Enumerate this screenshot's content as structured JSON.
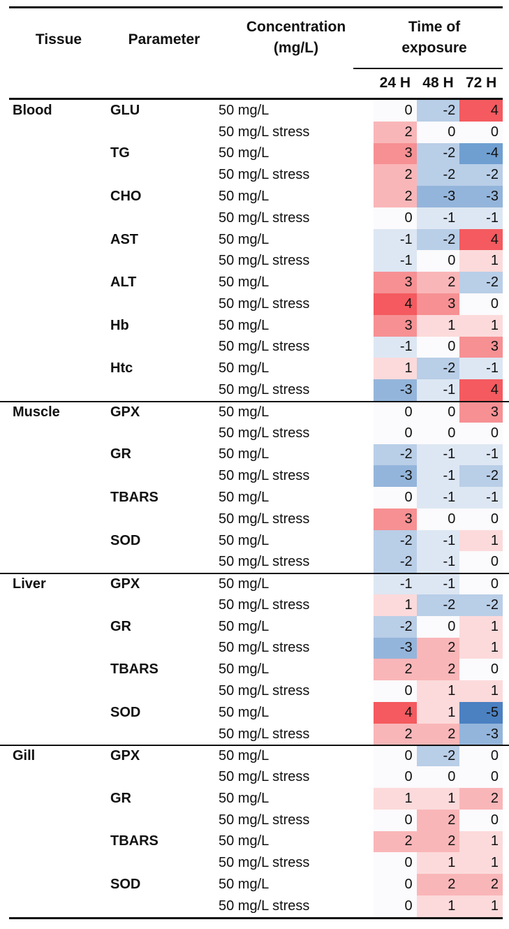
{
  "table": {
    "headers": {
      "tissue": "Tissue",
      "parameter": "Parameter",
      "concentration": [
        "Concentration",
        "(mg/L)"
      ],
      "time": [
        "Time of",
        "exposure"
      ],
      "time_cols": [
        "24 H",
        "48 H",
        "72 H"
      ]
    }
  },
  "chart_data": {
    "type": "heatmap",
    "title": "",
    "columns": [
      "24 H",
      "48 H",
      "72 H"
    ],
    "row_labels": [
      "Tissue",
      "Parameter",
      "Concentration (mg/L)"
    ],
    "value_range": [
      -5,
      4
    ],
    "legend": "diverging blue (negative) to red (positive)",
    "value_colors": {
      "-5": "#4b80c1",
      "-4": "#6f9fd1",
      "-3": "#94b5db",
      "-2": "#b9cee7",
      "-1": "#dde7f3",
      "0": "#fbfafc",
      "1": "#fcdadb",
      "2": "#f9b6b8",
      "3": "#f69093",
      "4": "#f45a5f"
    },
    "rows": [
      {
        "tissue": "Blood",
        "parameter": "GLU",
        "show_tissue": true,
        "show_parameter": true,
        "concentration": "50 mg/L",
        "values": [
          0,
          -2,
          4
        ]
      },
      {
        "tissue": "Blood",
        "parameter": "GLU",
        "show_tissue": false,
        "show_parameter": false,
        "concentration": "50 mg/L stress",
        "values": [
          2,
          0,
          0
        ]
      },
      {
        "tissue": "Blood",
        "parameter": "TG",
        "show_tissue": false,
        "show_parameter": true,
        "concentration": "50 mg/L",
        "values": [
          3,
          -2,
          -4
        ]
      },
      {
        "tissue": "Blood",
        "parameter": "TG",
        "show_tissue": false,
        "show_parameter": false,
        "concentration": "50 mg/L stress",
        "values": [
          2,
          -2,
          -2
        ]
      },
      {
        "tissue": "Blood",
        "parameter": "CHO",
        "show_tissue": false,
        "show_parameter": true,
        "concentration": "50 mg/L",
        "values": [
          2,
          -3,
          -3
        ]
      },
      {
        "tissue": "Blood",
        "parameter": "CHO",
        "show_tissue": false,
        "show_parameter": false,
        "concentration": "50 mg/L stress",
        "values": [
          0,
          -1,
          -1
        ]
      },
      {
        "tissue": "Blood",
        "parameter": "AST",
        "show_tissue": false,
        "show_parameter": true,
        "concentration": "50 mg/L",
        "values": [
          -1,
          -2,
          4
        ]
      },
      {
        "tissue": "Blood",
        "parameter": "AST",
        "show_tissue": false,
        "show_parameter": false,
        "concentration": "50 mg/L stress",
        "values": [
          -1,
          0,
          1
        ]
      },
      {
        "tissue": "Blood",
        "parameter": "ALT",
        "show_tissue": false,
        "show_parameter": true,
        "concentration": "50 mg/L",
        "values": [
          3,
          2,
          -2
        ]
      },
      {
        "tissue": "Blood",
        "parameter": "ALT",
        "show_tissue": false,
        "show_parameter": false,
        "concentration": "50 mg/L stress",
        "values": [
          4,
          3,
          0
        ]
      },
      {
        "tissue": "Blood",
        "parameter": "Hb",
        "show_tissue": false,
        "show_parameter": true,
        "concentration": "50 mg/L",
        "values": [
          3,
          1,
          1
        ]
      },
      {
        "tissue": "Blood",
        "parameter": "Hb",
        "show_tissue": false,
        "show_parameter": false,
        "concentration": "50 mg/L stress",
        "values": [
          -1,
          0,
          3
        ]
      },
      {
        "tissue": "Blood",
        "parameter": "Htc",
        "show_tissue": false,
        "show_parameter": true,
        "concentration": "50 mg/L",
        "values": [
          1,
          -2,
          -1
        ]
      },
      {
        "tissue": "Blood",
        "parameter": "Htc",
        "show_tissue": false,
        "show_parameter": false,
        "concentration": "50 mg/L stress",
        "values": [
          -3,
          -1,
          4
        ]
      },
      {
        "tissue": "Muscle",
        "parameter": "GPX",
        "show_tissue": true,
        "show_parameter": true,
        "concentration": "50 mg/L",
        "values": [
          0,
          0,
          3
        ]
      },
      {
        "tissue": "Muscle",
        "parameter": "GPX",
        "show_tissue": false,
        "show_parameter": false,
        "concentration": "50 mg/L stress",
        "values": [
          0,
          0,
          0
        ]
      },
      {
        "tissue": "Muscle",
        "parameter": "GR",
        "show_tissue": false,
        "show_parameter": true,
        "concentration": "50 mg/L",
        "values": [
          -2,
          -1,
          -1
        ]
      },
      {
        "tissue": "Muscle",
        "parameter": "GR",
        "show_tissue": false,
        "show_parameter": false,
        "concentration": "50 mg/L stress",
        "values": [
          -3,
          -1,
          -2
        ]
      },
      {
        "tissue": "Muscle",
        "parameter": "TBARS",
        "show_tissue": false,
        "show_parameter": true,
        "concentration": "50 mg/L",
        "values": [
          0,
          -1,
          -1
        ]
      },
      {
        "tissue": "Muscle",
        "parameter": "TBARS",
        "show_tissue": false,
        "show_parameter": false,
        "concentration": "50 mg/L stress",
        "values": [
          3,
          0,
          0
        ]
      },
      {
        "tissue": "Muscle",
        "parameter": "SOD",
        "show_tissue": false,
        "show_parameter": true,
        "concentration": "50 mg/L",
        "values": [
          -2,
          -1,
          1
        ]
      },
      {
        "tissue": "Muscle",
        "parameter": "SOD",
        "show_tissue": false,
        "show_parameter": false,
        "concentration": "50 mg/L stress",
        "values": [
          -2,
          -1,
          0
        ]
      },
      {
        "tissue": "Liver",
        "parameter": "GPX",
        "show_tissue": true,
        "show_parameter": true,
        "concentration": "50 mg/L",
        "values": [
          -1,
          -1,
          0
        ]
      },
      {
        "tissue": "Liver",
        "parameter": "GPX",
        "show_tissue": false,
        "show_parameter": false,
        "concentration": "50 mg/L stress",
        "values": [
          1,
          -2,
          -2
        ]
      },
      {
        "tissue": "Liver",
        "parameter": "GR",
        "show_tissue": false,
        "show_parameter": true,
        "concentration": "50 mg/L",
        "values": [
          -2,
          0,
          1
        ]
      },
      {
        "tissue": "Liver",
        "parameter": "GR",
        "show_tissue": false,
        "show_parameter": false,
        "concentration": "50 mg/L stress",
        "values": [
          -3,
          2,
          1
        ]
      },
      {
        "tissue": "Liver",
        "parameter": "TBARS",
        "show_tissue": false,
        "show_parameter": true,
        "concentration": "50 mg/L",
        "values": [
          2,
          2,
          0
        ]
      },
      {
        "tissue": "Liver",
        "parameter": "TBARS",
        "show_tissue": false,
        "show_parameter": false,
        "concentration": "50 mg/L stress",
        "values": [
          0,
          1,
          1
        ]
      },
      {
        "tissue": "Liver",
        "parameter": "SOD",
        "show_tissue": false,
        "show_parameter": true,
        "concentration": "50 mg/L",
        "values": [
          4,
          1,
          -5
        ]
      },
      {
        "tissue": "Liver",
        "parameter": "SOD",
        "show_tissue": false,
        "show_parameter": false,
        "concentration": "50 mg/L stress",
        "values": [
          2,
          2,
          -3
        ]
      },
      {
        "tissue": "Gill",
        "parameter": "GPX",
        "show_tissue": true,
        "show_parameter": true,
        "concentration": "50 mg/L",
        "values": [
          0,
          -2,
          0
        ]
      },
      {
        "tissue": "Gill",
        "parameter": "GPX",
        "show_tissue": false,
        "show_parameter": false,
        "concentration": "50 mg/L stress",
        "values": [
          0,
          0,
          0
        ]
      },
      {
        "tissue": "Gill",
        "parameter": "GR",
        "show_tissue": false,
        "show_parameter": true,
        "concentration": "50 mg/L",
        "values": [
          1,
          1,
          2
        ]
      },
      {
        "tissue": "Gill",
        "parameter": "GR",
        "show_tissue": false,
        "show_parameter": false,
        "concentration": "50 mg/L stress",
        "values": [
          0,
          2,
          0
        ]
      },
      {
        "tissue": "Gill",
        "parameter": "TBARS",
        "show_tissue": false,
        "show_parameter": true,
        "concentration": "50 mg/L",
        "values": [
          2,
          2,
          1
        ]
      },
      {
        "tissue": "Gill",
        "parameter": "TBARS",
        "show_tissue": false,
        "show_parameter": false,
        "concentration": "50 mg/L stress",
        "values": [
          0,
          1,
          1
        ]
      },
      {
        "tissue": "Gill",
        "parameter": "SOD",
        "show_tissue": false,
        "show_parameter": true,
        "concentration": "50 mg/L",
        "values": [
          0,
          2,
          2
        ]
      },
      {
        "tissue": "Gill",
        "parameter": "SOD",
        "show_tissue": false,
        "show_parameter": false,
        "concentration": "50 mg/L stress",
        "values": [
          0,
          1,
          1
        ]
      }
    ]
  }
}
